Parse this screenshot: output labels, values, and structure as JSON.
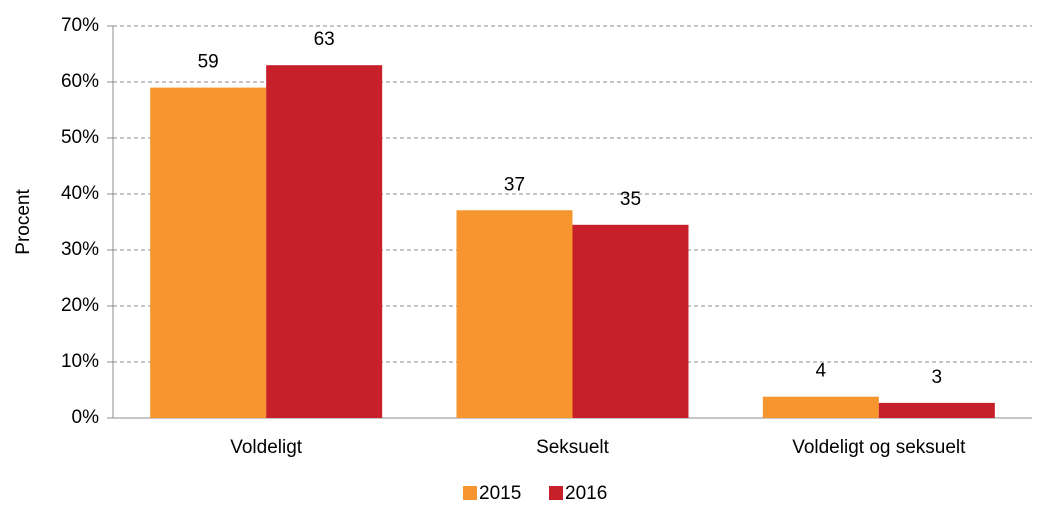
{
  "chart_data": {
    "type": "bar",
    "ylabel": "Procent",
    "categories": [
      "Voldeligt",
      "Seksuelt",
      "Voldeligt og seksuelt"
    ],
    "series": [
      {
        "name": "2015",
        "color": "#f7962f",
        "values": [
          59,
          37.1,
          3.8
        ],
        "value_labels": [
          "59",
          "37",
          "4"
        ]
      },
      {
        "name": "2016",
        "color": "#c8202a",
        "values": [
          63,
          34.5,
          2.7
        ],
        "value_labels": [
          "63",
          "35",
          "3"
        ]
      }
    ],
    "ylim": [
      0,
      70
    ],
    "yticks": [
      {
        "value": 0,
        "label": "0%"
      },
      {
        "value": 10,
        "label": "10%"
      },
      {
        "value": 20,
        "label": "20%"
      },
      {
        "value": 30,
        "label": "30%"
      },
      {
        "value": 40,
        "label": "40%"
      },
      {
        "value": 50,
        "label": "50%"
      },
      {
        "value": 60,
        "label": "60%"
      },
      {
        "value": 70,
        "label": "70%"
      }
    ],
    "grid": true,
    "legend": "bottom"
  }
}
